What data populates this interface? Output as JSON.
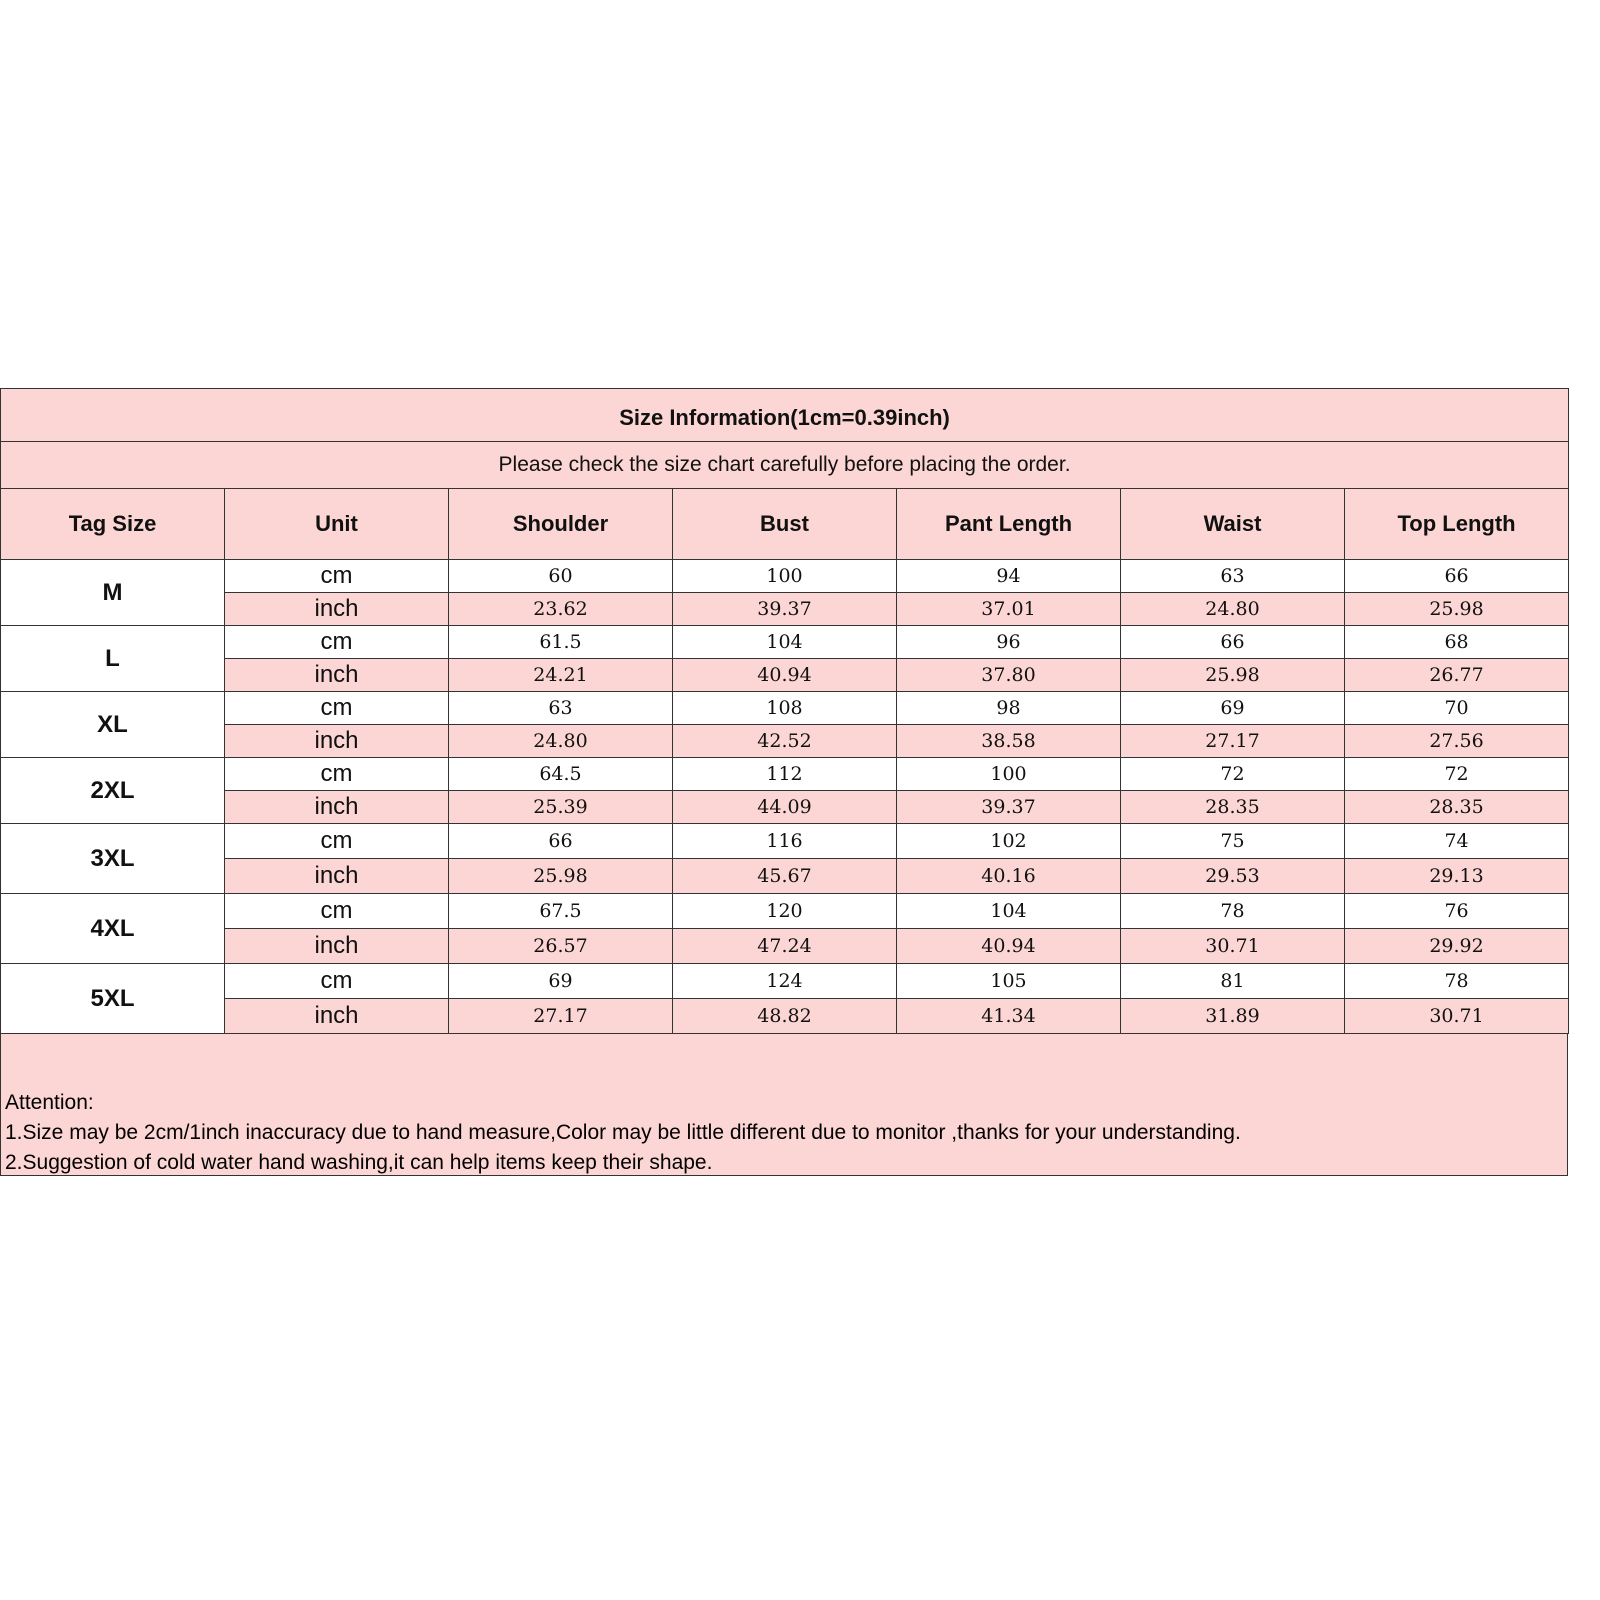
{
  "title": "Size Information(1cm=0.39inch)",
  "subtitle": "Please check the size chart carefully before placing the order.",
  "table": {
    "headers": [
      "Tag Size",
      "Unit",
      "Shoulder",
      "Bust",
      "Pant Length",
      "Waist",
      "Top Length"
    ],
    "rows": [
      {
        "size": "M",
        "lines": [
          {
            "unit": "cm",
            "values": [
              "60",
              "100",
              "94",
              "63",
              "66"
            ]
          },
          {
            "unit": "inch",
            "values": [
              "23.62",
              "39.37",
              "37.01",
              "24.80",
              "25.98"
            ]
          }
        ]
      },
      {
        "size": "L",
        "lines": [
          {
            "unit": "cm",
            "values": [
              "61.5",
              "104",
              "96",
              "66",
              "68"
            ]
          },
          {
            "unit": "inch",
            "values": [
              "24.21",
              "40.94",
              "37.80",
              "25.98",
              "26.77"
            ]
          }
        ]
      },
      {
        "size": "XL",
        "lines": [
          {
            "unit": "cm",
            "values": [
              "63",
              "108",
              "98",
              "69",
              "70"
            ]
          },
          {
            "unit": "inch",
            "values": [
              "24.80",
              "42.52",
              "38.58",
              "27.17",
              "27.56"
            ]
          }
        ]
      },
      {
        "size": "2XL",
        "lines": [
          {
            "unit": "cm",
            "values": [
              "64.5",
              "112",
              "100",
              "72",
              "72"
            ]
          },
          {
            "unit": "inch",
            "values": [
              "25.39",
              "44.09",
              "39.37",
              "28.35",
              "28.35"
            ]
          }
        ]
      },
      {
        "size": "3XL",
        "lines": [
          {
            "unit": "cm",
            "values": [
              "66",
              "116",
              "102",
              "75",
              "74"
            ]
          },
          {
            "unit": "inch",
            "values": [
              "25.98",
              "45.67",
              "40.16",
              "29.53",
              "29.13"
            ]
          }
        ]
      },
      {
        "size": "4XL",
        "lines": [
          {
            "unit": "cm",
            "values": [
              "67.5",
              "120",
              "104",
              "78",
              "76"
            ]
          },
          {
            "unit": "inch",
            "values": [
              "26.57",
              "47.24",
              "40.94",
              "30.71",
              "29.92"
            ]
          }
        ]
      },
      {
        "size": "5XL",
        "lines": [
          {
            "unit": "cm",
            "values": [
              "69",
              "124",
              "105",
              "81",
              "78"
            ]
          },
          {
            "unit": "inch",
            "values": [
              "27.17",
              "48.82",
              "41.34",
              "31.89",
              "30.71"
            ]
          }
        ]
      }
    ]
  },
  "notes": {
    "heading": "Attention:",
    "items": [
      "1.Size may be 2cm/1inch inaccuracy due to hand measure,Color may be little different due to monitor ,thanks for your understanding.",
      "2.Suggestion of cold water hand washing,it can help items keep their shape."
    ]
  }
}
